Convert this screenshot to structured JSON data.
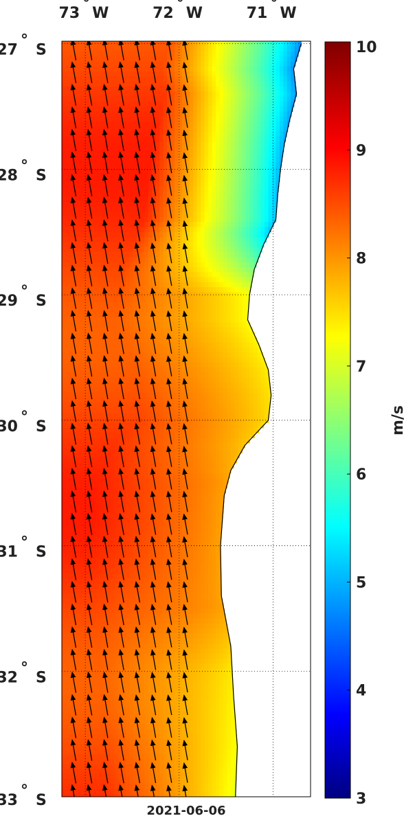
{
  "map": {
    "lon_ticks": [
      {
        "value": 73,
        "label": "73",
        "hemi": "W"
      },
      {
        "value": 72,
        "label": "72",
        "hemi": "W"
      },
      {
        "value": 71,
        "label": "71",
        "hemi": "W"
      }
    ],
    "lat_ticks": [
      {
        "value": 27,
        "label": "27",
        "hemi": "S"
      },
      {
        "value": 28,
        "label": "28",
        "hemi": "S"
      },
      {
        "value": 29,
        "label": "29",
        "hemi": "S"
      },
      {
        "value": 30,
        "label": "30",
        "hemi": "S"
      },
      {
        "value": 31,
        "label": "31",
        "hemi": "S"
      },
      {
        "value": 32,
        "label": "32",
        "hemi": "S"
      },
      {
        "value": 33,
        "label": "33",
        "hemi": "S"
      }
    ],
    "date_label": "2021-06-06",
    "coastline_lon_by_lat": [
      [
        27.0,
        70.7
      ],
      [
        27.2,
        70.78
      ],
      [
        27.4,
        70.75
      ],
      [
        27.6,
        70.82
      ],
      [
        27.8,
        70.88
      ],
      [
        28.0,
        70.92
      ],
      [
        28.2,
        70.95
      ],
      [
        28.4,
        70.97
      ],
      [
        28.6,
        71.1
      ],
      [
        28.8,
        71.2
      ],
      [
        29.0,
        71.25
      ],
      [
        29.2,
        71.27
      ],
      [
        29.4,
        71.15
      ],
      [
        29.6,
        71.05
      ],
      [
        29.8,
        71.02
      ],
      [
        30.0,
        71.05
      ],
      [
        30.2,
        71.3
      ],
      [
        30.4,
        71.45
      ],
      [
        30.6,
        71.52
      ],
      [
        31.0,
        71.56
      ],
      [
        31.4,
        71.55
      ],
      [
        31.8,
        71.45
      ],
      [
        32.2,
        71.42
      ],
      [
        32.6,
        71.38
      ],
      [
        33.0,
        71.4
      ]
    ],
    "wind_direction": "toward north-northwest",
    "wind_speed_ms": {
      "offshore_73W": 8.7,
      "nearshore_27S_to_28.5S": 4.8,
      "nearshore_29S_to_30S": 7.3,
      "nearshore_30.5S_to_31.5S": 8.0,
      "nearshore_32S_to_33S": 7.2
    }
  },
  "colorbar": {
    "min": 3,
    "max": 10,
    "ticks": [
      "3",
      "4",
      "5",
      "6",
      "7",
      "8",
      "9",
      "10"
    ],
    "unit": "m/s",
    "colormap": "jet"
  }
}
